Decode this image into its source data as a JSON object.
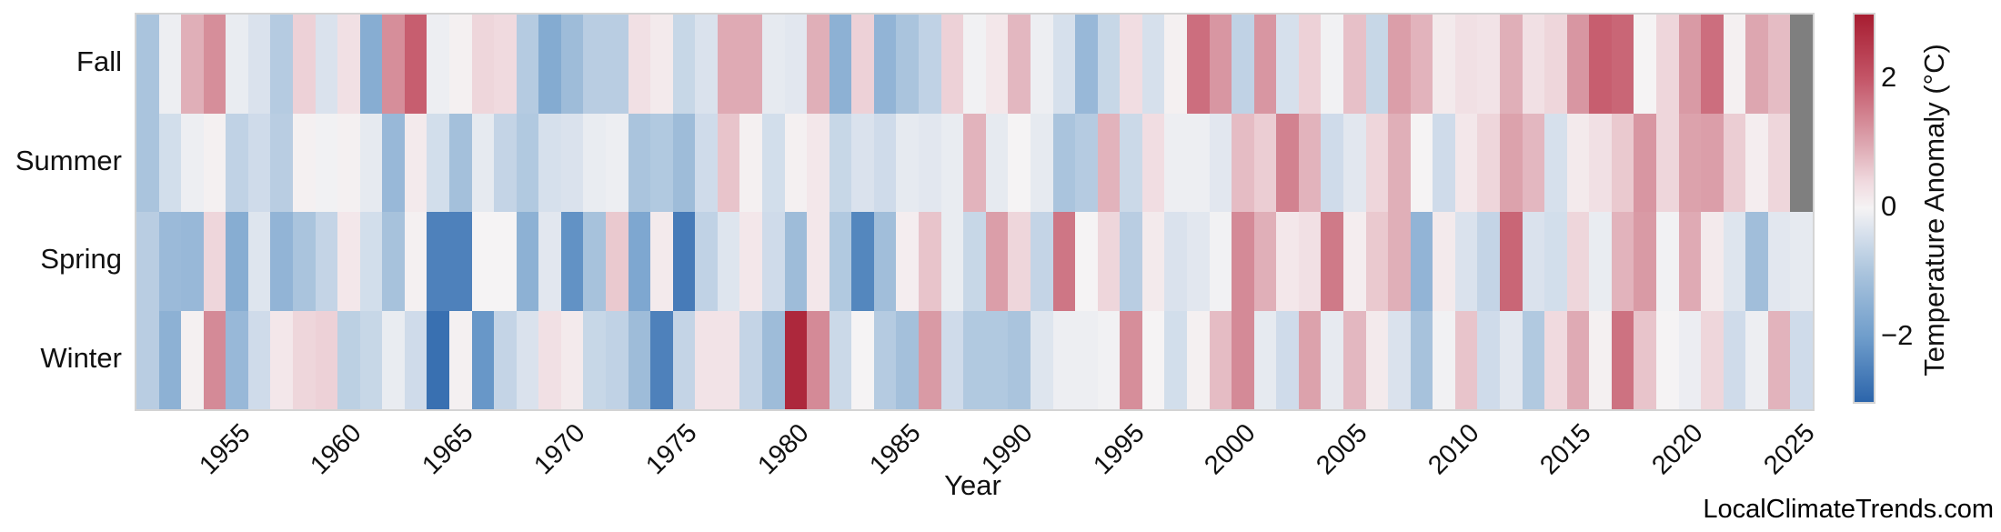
{
  "watermark": "LocalClimateTrends.com",
  "xlabel": "Year",
  "row_labels": [
    "Fall",
    "Summer",
    "Spring",
    "Winter"
  ],
  "x_tick_labels": [
    "1955",
    "1960",
    "1965",
    "1970",
    "1975",
    "1980",
    "1985",
    "1990",
    "1995",
    "2000",
    "2005",
    "2010",
    "2015",
    "2020",
    "2025"
  ],
  "colorbar": {
    "label": "Temperature Anomaly (°C)",
    "tick_values": [
      2,
      0,
      -2
    ],
    "tick_labels": [
      "2",
      "0",
      "−2"
    ],
    "vmin": -3,
    "vmax": 3,
    "missing_color": "#7f7f7f",
    "stops": [
      [
        -3,
        "#2c65ab"
      ],
      [
        -2,
        "#6f9dcb"
      ],
      [
        -1,
        "#aac4dd"
      ],
      [
        -0.4,
        "#d6e0ec"
      ],
      [
        0,
        "#f5f3f4"
      ],
      [
        0.4,
        "#f0dadf"
      ],
      [
        1,
        "#dda6b0"
      ],
      [
        2,
        "#c45668"
      ],
      [
        3,
        "#a71d31"
      ]
    ]
  },
  "chart_data": {
    "type": "heatmap",
    "title": "",
    "xlabel": "Year",
    "ylabel": "",
    "legend_position": "right-colorbar",
    "grid": false,
    "x": [
      1951,
      1952,
      1953,
      1954,
      1955,
      1956,
      1957,
      1958,
      1959,
      1960,
      1961,
      1962,
      1963,
      1964,
      1965,
      1966,
      1967,
      1968,
      1969,
      1970,
      1971,
      1972,
      1973,
      1974,
      1975,
      1976,
      1977,
      1978,
      1979,
      1980,
      1981,
      1982,
      1983,
      1984,
      1985,
      1986,
      1987,
      1988,
      1989,
      1990,
      1991,
      1992,
      1993,
      1994,
      1995,
      1996,
      1997,
      1998,
      1999,
      2000,
      2001,
      2002,
      2003,
      2004,
      2005,
      2006,
      2007,
      2008,
      2009,
      2010,
      2011,
      2012,
      2013,
      2014,
      2015,
      2016,
      2017,
      2018,
      2019,
      2020,
      2021,
      2022,
      2023,
      2024,
      2025
    ],
    "rows": [
      "Fall",
      "Summer",
      "Spring",
      "Winter"
    ],
    "value_units": "°C anomaly",
    "value_range": [
      -3,
      3
    ],
    "series": [
      {
        "name": "Fall",
        "values": [
          -1.0,
          -0.1,
          0.9,
          1.3,
          -0.15,
          -0.35,
          -0.85,
          0.5,
          -0.35,
          0.3,
          -1.6,
          1.3,
          1.9,
          -0.1,
          0.05,
          0.45,
          0.4,
          -0.85,
          -1.65,
          -1.2,
          -0.8,
          -0.8,
          0.3,
          0.15,
          -0.6,
          -0.35,
          0.95,
          0.95,
          -0.2,
          -0.25,
          0.9,
          -1.5,
          0.5,
          -1.4,
          -1.0,
          -0.7,
          0.5,
          -0.05,
          0.2,
          0.8,
          -0.1,
          -0.4,
          -1.3,
          -0.6,
          0.35,
          -0.4,
          0.05,
          1.7,
          1.2,
          -0.7,
          1.2,
          -0.4,
          0.5,
          -0.05,
          0.7,
          -0.6,
          1.1,
          0.85,
          0.15,
          0.3,
          0.25,
          0.9,
          0.3,
          0.45,
          1.2,
          1.9,
          1.8,
          0.0,
          0.45,
          1.15,
          1.7,
          0.05,
          1.0,
          0.75,
          null
        ]
      },
      {
        "name": "Summer",
        "values": [
          -1.0,
          -0.45,
          -0.1,
          0.05,
          -0.7,
          -0.5,
          -0.8,
          0.05,
          -0.05,
          0.05,
          -0.2,
          -1.3,
          0.15,
          -0.45,
          -1.1,
          -0.2,
          -0.65,
          -0.9,
          -0.4,
          -0.35,
          -0.15,
          -0.1,
          -1.0,
          -0.9,
          -1.2,
          -0.5,
          0.65,
          0.05,
          -0.45,
          0.05,
          0.2,
          -0.6,
          -0.35,
          -0.5,
          -0.2,
          -0.25,
          -0.15,
          0.85,
          -0.2,
          0.0,
          -0.2,
          -1.0,
          -0.85,
          0.85,
          -0.55,
          0.35,
          -0.1,
          -0.1,
          -0.25,
          0.75,
          0.55,
          1.45,
          0.85,
          -0.5,
          -0.25,
          0.45,
          0.9,
          0.0,
          -0.5,
          0.2,
          0.45,
          1.05,
          0.8,
          -0.4,
          0.15,
          0.3,
          0.6,
          1.2,
          0.45,
          1.05,
          1.1,
          0.55,
          0.1,
          0.45,
          null
        ]
      },
      {
        "name": "Spring",
        "values": [
          -0.8,
          -1.25,
          -1.3,
          0.45,
          -1.6,
          -0.3,
          -1.4,
          -1.0,
          -0.65,
          0.2,
          -0.45,
          -1.05,
          0.05,
          -2.5,
          -2.5,
          0.0,
          0.0,
          -1.5,
          -0.25,
          -2.2,
          -1.05,
          0.6,
          -1.75,
          0.15,
          -2.6,
          -0.7,
          -0.3,
          0.2,
          -0.5,
          -1.2,
          0.2,
          -0.9,
          -2.4,
          -1.15,
          0.1,
          0.65,
          -0.15,
          -0.6,
          1.1,
          0.45,
          -0.65,
          1.6,
          0.0,
          0.45,
          -0.8,
          0.15,
          -0.35,
          -0.25,
          -0.05,
          1.35,
          0.9,
          0.2,
          0.3,
          1.55,
          0.1,
          0.6,
          0.9,
          -1.4,
          0.15,
          -0.35,
          -0.65,
          1.8,
          -0.35,
          -0.45,
          0.45,
          -0.15,
          0.85,
          1.15,
          -0.05,
          0.95,
          0.15,
          -0.3,
          -1.15,
          -0.25,
          -0.2
        ]
      },
      {
        "name": "Winter",
        "values": [
          -0.8,
          -1.5,
          0.05,
          1.35,
          -1.3,
          -0.5,
          0.2,
          0.45,
          0.5,
          -0.75,
          -0.6,
          -0.15,
          -0.5,
          -2.8,
          0.05,
          -2.1,
          -0.65,
          -0.35,
          0.3,
          0.15,
          -0.6,
          -0.7,
          -1.2,
          -2.5,
          -0.65,
          0.25,
          0.25,
          -0.65,
          -1.2,
          2.8,
          1.35,
          -0.55,
          0.0,
          -0.85,
          -1.1,
          1.15,
          -0.5,
          -0.9,
          -0.9,
          -1.0,
          -0.3,
          -0.1,
          -0.1,
          -0.05,
          1.3,
          0.0,
          -0.45,
          0.05,
          0.75,
          1.35,
          -0.2,
          -0.5,
          1.05,
          -0.18,
          0.8,
          0.15,
          -0.35,
          -1.05,
          -0.05,
          0.65,
          -0.5,
          -0.25,
          -0.9,
          0.4,
          0.95,
          0.05,
          1.65,
          0.65,
          0.0,
          -0.12,
          0.45,
          -0.5,
          -0.1,
          0.85,
          -0.5
        ]
      }
    ],
    "notes": "Gray cells = missing data (Fall 2025, Summer 2025)"
  }
}
